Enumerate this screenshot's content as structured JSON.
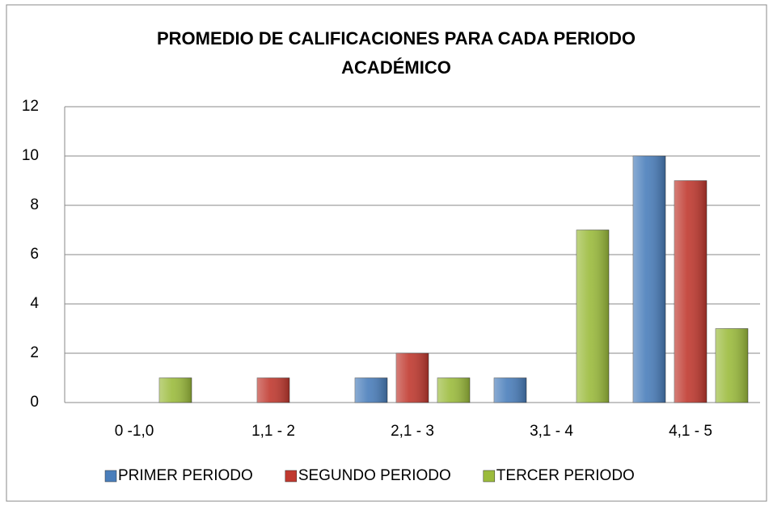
{
  "chart_data": {
    "type": "bar",
    "title": "PROMEDIO DE CALIFICACIONES PARA CADA PERIODO ACADÉMICO",
    "categories": [
      "0 -1,0",
      "1,1 - 2",
      "2,1 - 3",
      "3,1 - 4",
      "4,1 - 5"
    ],
    "series": [
      {
        "name": "PRIMER PERIODO",
        "color": "#4a7ebb",
        "values": [
          0,
          0,
          1,
          1,
          10
        ]
      },
      {
        "name": "SEGUNDO PERIODO",
        "color": "#c0392f",
        "values": [
          0,
          1,
          2,
          0,
          9
        ]
      },
      {
        "name": "TERCER PERIODO",
        "color": "#9bbb3c",
        "values": [
          1,
          0,
          1,
          7,
          3
        ]
      }
    ],
    "ylim": [
      0,
      12
    ],
    "yticks": [
      0,
      2,
      4,
      6,
      8,
      10,
      12
    ],
    "grid": true,
    "legend": "bottom"
  }
}
